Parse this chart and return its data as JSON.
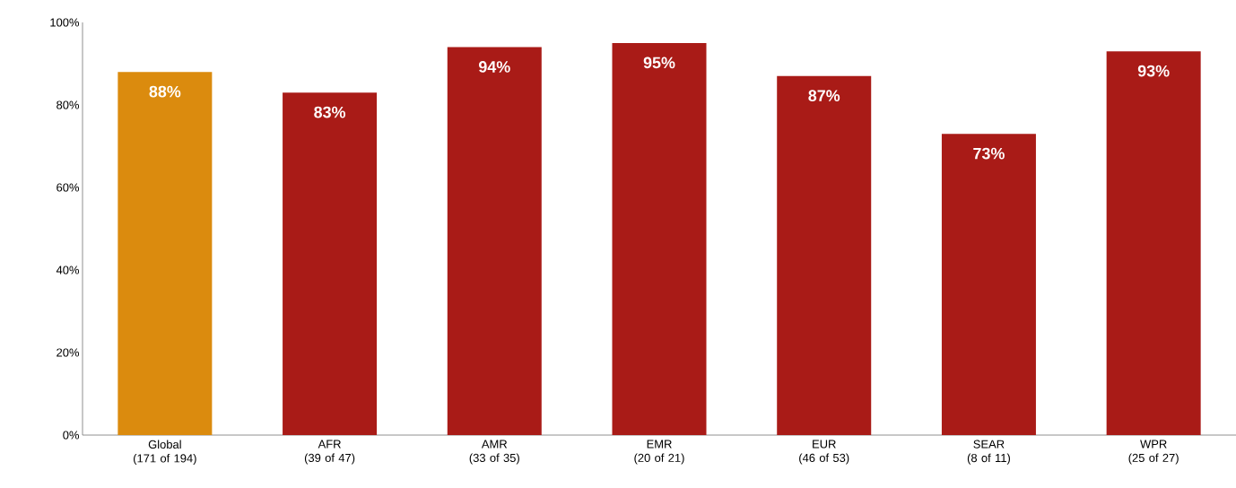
{
  "chart_data": {
    "type": "bar",
    "categories": [
      "Global\n(171 of 194)",
      "AFR\n(39 of 47)",
      "AMR\n(33 of 35)",
      "EMR\n(20 of 21)",
      "EUR\n(46 of 53)",
      "SEAR\n(8 of 11)",
      "WPR\n(25 of 27)"
    ],
    "values": [
      88,
      83,
      94,
      95,
      87,
      73,
      93
    ],
    "colors": [
      "#db8b0e",
      "#a91b17",
      "#a91b17",
      "#a91b17",
      "#a91b17",
      "#a91b17",
      "#a91b17"
    ],
    "value_labels": [
      "88%",
      "83%",
      "94%",
      "95%",
      "87%",
      "73%",
      "93%"
    ],
    "ylim": [
      0,
      100
    ],
    "yticks": [
      {
        "value": 0,
        "label": "0%"
      },
      {
        "value": 20,
        "label": "20%"
      },
      {
        "value": 40,
        "label": "40%"
      },
      {
        "value": 60,
        "label": "60%"
      },
      {
        "value": 80,
        "label": "80%"
      },
      {
        "value": 100,
        "label": "100%"
      }
    ]
  }
}
